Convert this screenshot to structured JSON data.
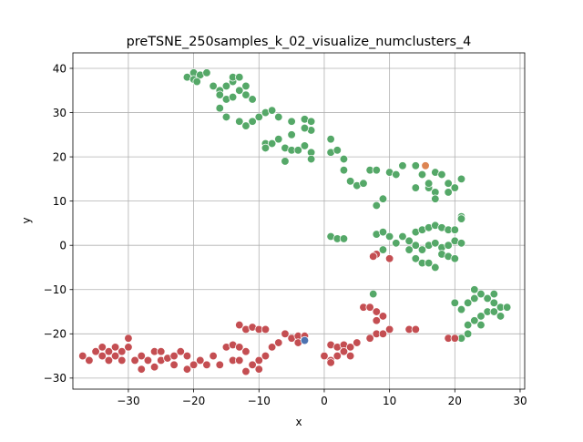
{
  "chart_data": {
    "type": "scatter",
    "title": "preTSNE_250samples_k_02_visualize_numclusters_4",
    "xlabel": "x",
    "ylabel": "y",
    "xlim": [
      -38.5,
      30.7
    ],
    "ylim": [
      -32.5,
      43.5
    ],
    "xticks": [
      -30,
      -20,
      -10,
      0,
      10,
      20,
      30
    ],
    "yticks": [
      -30,
      -20,
      -10,
      0,
      10,
      20,
      30,
      40
    ],
    "xtick_labels": [
      "−30",
      "−20",
      "−10",
      "0",
      "10",
      "20",
      "30"
    ],
    "ytick_labels": [
      "−30",
      "−20",
      "−10",
      "0",
      "10",
      "20",
      "30",
      "40"
    ],
    "grid": true,
    "legend": "none",
    "series": [
      {
        "color": "#55a868",
        "points": [
          [
            -21,
            38
          ],
          [
            -20,
            39
          ],
          [
            -19,
            38.5
          ],
          [
            -18,
            39
          ],
          [
            -20,
            37.5
          ],
          [
            -19.5,
            37
          ],
          [
            -17,
            36
          ],
          [
            -16,
            35
          ],
          [
            -15,
            36
          ],
          [
            -14,
            37
          ],
          [
            -14,
            38
          ],
          [
            -13,
            35
          ],
          [
            -12,
            36
          ],
          [
            -12,
            34
          ],
          [
            -11,
            33
          ],
          [
            -15,
            33
          ],
          [
            -16,
            34
          ],
          [
            -17,
            36
          ],
          [
            -13,
            38
          ],
          [
            -14,
            33.5
          ],
          [
            -16,
            31
          ],
          [
            -15,
            29
          ],
          [
            -13,
            28
          ],
          [
            -12,
            27
          ],
          [
            -11,
            28
          ],
          [
            -10,
            29
          ],
          [
            -9,
            30
          ],
          [
            -8,
            30.5
          ],
          [
            -7,
            29
          ],
          [
            -5,
            28
          ],
          [
            -3,
            28.5
          ],
          [
            -2,
            28
          ],
          [
            -2,
            26
          ],
          [
            -3,
            26.5
          ],
          [
            -9,
            23
          ],
          [
            -9,
            22
          ],
          [
            -8,
            23
          ],
          [
            -7,
            24
          ],
          [
            -6,
            22
          ],
          [
            -5,
            21.5
          ],
          [
            -5,
            25
          ],
          [
            -4,
            21.5
          ],
          [
            -3,
            22.5
          ],
          [
            -2,
            21
          ],
          [
            -2,
            19.5
          ],
          [
            -6,
            19
          ],
          [
            1,
            24
          ],
          [
            1,
            21
          ],
          [
            2,
            21.5
          ],
          [
            3,
            19.5
          ],
          [
            3,
            17
          ],
          [
            4,
            14.5
          ],
          [
            5,
            13.5
          ],
          [
            6,
            14
          ],
          [
            7,
            17
          ],
          [
            8,
            17
          ],
          [
            9,
            10.5
          ],
          [
            8,
            9
          ],
          [
            10,
            16.5
          ],
          [
            11,
            16
          ],
          [
            12,
            18
          ],
          [
            14,
            18
          ],
          [
            15,
            16
          ],
          [
            14,
            13
          ],
          [
            16,
            13
          ],
          [
            17,
            16.5
          ],
          [
            18,
            16
          ],
          [
            16,
            14
          ],
          [
            19,
            14
          ],
          [
            17,
            12
          ],
          [
            19,
            12
          ],
          [
            20,
            13
          ],
          [
            21,
            15
          ],
          [
            17,
            10.5
          ],
          [
            21,
            6.5
          ],
          [
            21,
            6
          ],
          [
            1,
            2
          ],
          [
            2,
            1.5
          ],
          [
            3,
            1.5
          ],
          [
            8,
            2.5
          ],
          [
            9,
            3
          ],
          [
            10,
            2
          ],
          [
            11,
            0.5
          ],
          [
            12,
            2
          ],
          [
            13,
            1
          ],
          [
            14,
            3
          ],
          [
            15,
            3.5
          ],
          [
            16,
            4
          ],
          [
            17,
            4.5
          ],
          [
            18,
            4
          ],
          [
            19,
            3.5
          ],
          [
            20,
            3.5
          ],
          [
            14,
            0
          ],
          [
            15,
            -1
          ],
          [
            16,
            0
          ],
          [
            17,
            0.5
          ],
          [
            18,
            -0.5
          ],
          [
            19,
            0
          ],
          [
            20,
            1
          ],
          [
            21,
            0.5
          ],
          [
            14,
            -3
          ],
          [
            15,
            -4
          ],
          [
            16,
            -4
          ],
          [
            17,
            -5
          ],
          [
            18,
            -2
          ],
          [
            19,
            -2.5
          ],
          [
            20,
            -3
          ],
          [
            9,
            -1
          ],
          [
            13,
            -1
          ],
          [
            7.5,
            -11
          ],
          [
            20,
            -13
          ],
          [
            21,
            -14.5
          ],
          [
            22,
            -13
          ],
          [
            23,
            -12
          ],
          [
            23,
            -10
          ],
          [
            24,
            -11
          ],
          [
            25,
            -12
          ],
          [
            26,
            -11
          ],
          [
            26,
            -13
          ],
          [
            27,
            -14
          ],
          [
            25,
            -15
          ],
          [
            24,
            -16
          ],
          [
            23,
            -17
          ],
          [
            22,
            -18
          ],
          [
            26,
            -15
          ],
          [
            27,
            -16
          ],
          [
            28,
            -14
          ],
          [
            24,
            -18
          ],
          [
            22,
            -20
          ],
          [
            21,
            -21
          ]
        ]
      },
      {
        "color": "#c44e52",
        "points": [
          [
            -37,
            -25
          ],
          [
            -36,
            -26
          ],
          [
            -35,
            -24
          ],
          [
            -34,
            -25
          ],
          [
            -34,
            -23
          ],
          [
            -33,
            -24
          ],
          [
            -33,
            -26
          ],
          [
            -32,
            -23
          ],
          [
            -31,
            -24
          ],
          [
            -30,
            -21
          ],
          [
            -31,
            -26
          ],
          [
            -32,
            -25
          ],
          [
            -30,
            -23
          ],
          [
            -29,
            -26
          ],
          [
            -28,
            -28
          ],
          [
            -28,
            -25
          ],
          [
            -27,
            -26
          ],
          [
            -26,
            -24
          ],
          [
            -26,
            -27.5
          ],
          [
            -25,
            -24
          ],
          [
            -25,
            -26
          ],
          [
            -24,
            -25.5
          ],
          [
            -23,
            -25
          ],
          [
            -23,
            -27
          ],
          [
            -22,
            -24
          ],
          [
            -21,
            -25
          ],
          [
            -21,
            -28
          ],
          [
            -20,
            -27
          ],
          [
            -19,
            -26
          ],
          [
            -18,
            -27
          ],
          [
            -17,
            -25
          ],
          [
            -16,
            -27
          ],
          [
            -15,
            -23
          ],
          [
            -14,
            -22.5
          ],
          [
            -14,
            -26
          ],
          [
            -13,
            -26
          ],
          [
            -13,
            -23
          ],
          [
            -12,
            -24
          ],
          [
            -12,
            -28.5
          ],
          [
            -11,
            -27
          ],
          [
            -10,
            -26
          ],
          [
            -10,
            -28
          ],
          [
            -9,
            -25
          ],
          [
            -8,
            -23
          ],
          [
            -7,
            -22
          ],
          [
            -6,
            -20
          ],
          [
            -5,
            -21
          ],
          [
            -4,
            -20.5
          ],
          [
            -3,
            -20.5
          ],
          [
            -4,
            -22
          ],
          [
            -13,
            -18
          ],
          [
            -12,
            -19
          ],
          [
            -11,
            -18.5
          ],
          [
            -10,
            -19
          ],
          [
            -9,
            -19
          ],
          [
            0,
            -25
          ],
          [
            1,
            -22.5
          ],
          [
            1,
            -26
          ],
          [
            2,
            -25
          ],
          [
            2,
            -23
          ],
          [
            3,
            -22.5
          ],
          [
            3,
            -24
          ],
          [
            4,
            -23
          ],
          [
            4,
            -25
          ],
          [
            5,
            -22
          ],
          [
            1,
            -26.5
          ],
          [
            6,
            -14
          ],
          [
            7,
            -14
          ],
          [
            8,
            -15
          ],
          [
            9,
            -16
          ],
          [
            8,
            -17
          ],
          [
            7,
            -21
          ],
          [
            8,
            -20
          ],
          [
            9,
            -20
          ],
          [
            10,
            -19
          ],
          [
            13,
            -19
          ],
          [
            14,
            -19
          ],
          [
            8,
            -2
          ],
          [
            10,
            -3
          ],
          [
            19,
            -21
          ],
          [
            20,
            -21
          ],
          [
            7.5,
            -2.5
          ]
        ]
      },
      {
        "color": "#dd8452",
        "points": [
          [
            15.5,
            18
          ]
        ]
      },
      {
        "color": "#4c72b0",
        "points": [
          [
            -3,
            -21.5
          ]
        ]
      }
    ]
  }
}
